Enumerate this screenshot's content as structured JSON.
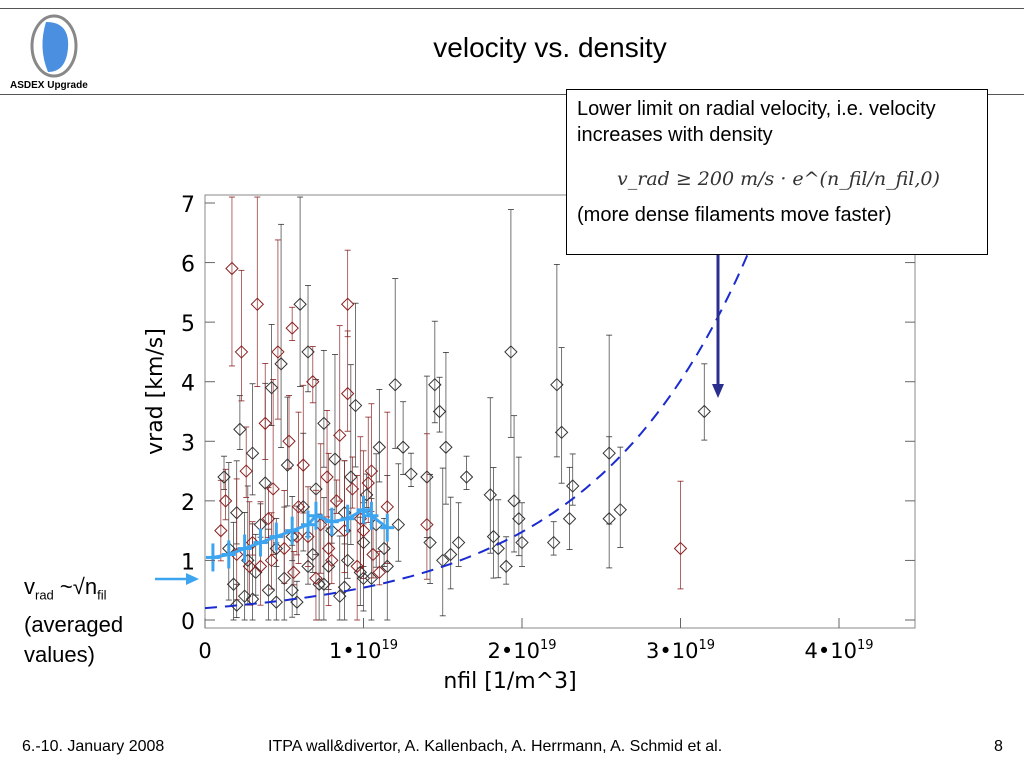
{
  "slide": {
    "title": "velocity vs. density",
    "logo_text": "ASDEX Upgrade",
    "callout": {
      "line1": "Lower limit on radial velocity, i.e. velocity increases with density",
      "formula": "v_rad ≥ 200 m/s · e^(n_fil/n_fil,0)",
      "line3": "(more dense filaments move faster)"
    },
    "annotation": {
      "v": "v",
      "rad": "rad",
      "mid": " ~√n",
      "fil": "fil",
      "line2": "(averaged",
      "line3": "values)"
    },
    "footer": {
      "date": "6.-10. January 2008",
      "credit": "ITPA wall&divertor, A. Kallenbach,  A. Herrmann, A. Schmid et al.",
      "page": "8"
    }
  },
  "colors": {
    "black_markers": "#333333",
    "red_markers": "#8b2020",
    "average_line": "#3da5f0",
    "fit_curve": "#1a2bd0",
    "callout_arrow": "#2a2f8f"
  },
  "chart_data": {
    "type": "scatter",
    "xlabel": "nfil [1/m^3]",
    "ylabel": "vrad [km/s]",
    "xlim": [
      0,
      4.5e+19
    ],
    "ylim": [
      0,
      7
    ],
    "x_ticks": [
      {
        "value": 0,
        "label": "0"
      },
      {
        "value": 1e+19,
        "label": "1•10",
        "exp": "19"
      },
      {
        "value": 2e+19,
        "label": "2•10",
        "exp": "19"
      },
      {
        "value": 3e+19,
        "label": "3•10",
        "exp": "19"
      },
      {
        "value": 4e+19,
        "label": "4•10",
        "exp": "19"
      }
    ],
    "y_ticks": [
      0,
      1,
      2,
      3,
      4,
      5,
      6,
      7
    ],
    "series": [
      {
        "key": "black",
        "points": [
          [
            1.2e+18,
            2.4
          ],
          [
            1.5e+18,
            1.2
          ],
          [
            1.8e+18,
            0.6
          ],
          [
            2e+18,
            1.8
          ],
          [
            2.2e+18,
            3.2
          ],
          [
            2.5e+18,
            0.4
          ],
          [
            2.7e+18,
            1.0
          ],
          [
            3e+18,
            2.8
          ],
          [
            3.2e+18,
            0.8
          ],
          [
            3.5e+18,
            1.6
          ],
          [
            3.8e+18,
            2.3
          ],
          [
            4e+18,
            0.5
          ],
          [
            4.2e+18,
            3.9
          ],
          [
            4.5e+18,
            1.2
          ],
          [
            4.8e+18,
            4.3
          ],
          [
            5e+18,
            0.7
          ],
          [
            5.2e+18,
            2.6
          ],
          [
            5.5e+18,
            1.4
          ],
          [
            5.8e+18,
            0.3
          ],
          [
            6e+18,
            5.3
          ],
          [
            6.2e+18,
            1.9
          ],
          [
            6.5e+18,
            4.5
          ],
          [
            6.8e+18,
            1.1
          ],
          [
            7e+18,
            2.2
          ],
          [
            7.2e+18,
            0.6
          ],
          [
            7.5e+18,
            3.3
          ],
          [
            7.8e+18,
            0.9
          ],
          [
            8e+18,
            1.5
          ],
          [
            8.2e+18,
            2.7
          ],
          [
            8.5e+18,
            0.4
          ],
          [
            8.8e+18,
            1.8
          ],
          [
            9e+18,
            1.0
          ],
          [
            9.2e+18,
            2.4
          ],
          [
            9.5e+18,
            3.6
          ],
          [
            9.8e+18,
            0.8
          ],
          [
            1e+19,
            1.3
          ],
          [
            1.02e+19,
            2.1
          ],
          [
            1.05e+19,
            0.7
          ],
          [
            1.08e+19,
            1.6
          ],
          [
            1.1e+19,
            2.9
          ],
          [
            1.13e+19,
            1.2
          ],
          [
            1.15e+19,
            0.9
          ],
          [
            1.2e+19,
            3.95
          ],
          [
            1.22e+19,
            1.6
          ],
          [
            1.25e+19,
            2.9
          ],
          [
            1.3e+19,
            2.45
          ],
          [
            1.4e+19,
            2.4
          ],
          [
            1.42e+19,
            1.3
          ],
          [
            1.45e+19,
            3.95
          ],
          [
            1.48e+19,
            3.5
          ],
          [
            1.5e+19,
            1.0
          ],
          [
            1.52e+19,
            2.9
          ],
          [
            1.55e+19,
            1.1
          ],
          [
            1.6e+19,
            1.3
          ],
          [
            1.65e+19,
            2.4
          ],
          [
            1.8e+19,
            2.1
          ],
          [
            1.82e+19,
            1.4
          ],
          [
            1.85e+19,
            1.2
          ],
          [
            1.9e+19,
            0.9
          ],
          [
            1.93e+19,
            4.5
          ],
          [
            1.95e+19,
            2.0
          ],
          [
            1.98e+19,
            1.7
          ],
          [
            2e+19,
            1.3
          ],
          [
            2.2e+19,
            1.3
          ],
          [
            2.22e+19,
            3.95
          ],
          [
            2.25e+19,
            3.15
          ],
          [
            2.3e+19,
            1.7
          ],
          [
            2.32e+19,
            2.25
          ],
          [
            2.55e+19,
            2.8
          ],
          [
            2.55e+19,
            1.7
          ],
          [
            2.62e+19,
            1.85
          ],
          [
            3.15e+19,
            3.5
          ],
          [
            2e+18,
            0.25
          ],
          [
            3e+18,
            0.35
          ],
          [
            4.5e+18,
            0.3
          ],
          [
            5.5e+18,
            0.5
          ],
          [
            6.5e+18,
            0.9
          ],
          [
            7.5e+18,
            0.6
          ],
          [
            8.8e+18,
            0.55
          ],
          [
            1e+19,
            0.7
          ]
        ]
      },
      {
        "key": "red",
        "points": [
          [
            1e+18,
            1.5
          ],
          [
            1.3e+18,
            2.0
          ],
          [
            1.7e+18,
            5.9
          ],
          [
            2e+18,
            1.1
          ],
          [
            2.3e+18,
            4.5
          ],
          [
            2.6e+18,
            2.5
          ],
          [
            3e+18,
            1.3
          ],
          [
            3.3e+18,
            5.3
          ],
          [
            3.5e+18,
            0.9
          ],
          [
            3.8e+18,
            3.3
          ],
          [
            4e+18,
            1.7
          ],
          [
            4.3e+18,
            2.2
          ],
          [
            4.6e+18,
            4.5
          ],
          [
            5e+18,
            1.2
          ],
          [
            5.3e+18,
            3.0
          ],
          [
            5.6e+18,
            0.8
          ],
          [
            5.9e+18,
            1.9
          ],
          [
            6.2e+18,
            2.6
          ],
          [
            6.5e+18,
            1.4
          ],
          [
            6.8e+18,
            4.0
          ],
          [
            7e+18,
            0.7
          ],
          [
            7.3e+18,
            1.6
          ],
          [
            7.7e+18,
            2.4
          ],
          [
            8e+18,
            1.0
          ],
          [
            8.3e+18,
            2.0
          ],
          [
            8.5e+18,
            3.1
          ],
          [
            8.8e+18,
            1.5
          ],
          [
            9e+18,
            3.8
          ],
          [
            9.3e+18,
            2.2
          ],
          [
            9.6e+18,
            0.9
          ],
          [
            9.8e+18,
            1.7
          ],
          [
            1.03e+19,
            2.3
          ],
          [
            1.06e+19,
            1.1
          ],
          [
            1.1e+19,
            0.8
          ],
          [
            1.15e+19,
            1.9
          ],
          [
            2.8e+18,
            0.9
          ],
          [
            4.2e+18,
            1.0
          ],
          [
            5.8e+18,
            1.4
          ],
          [
            7.8e+18,
            1.2
          ],
          [
            1e+19,
            1.5
          ],
          [
            1.05e+19,
            2.5
          ],
          [
            9e+18,
            5.3
          ],
          [
            5.5e+18,
            4.9
          ],
          [
            1.4e+19,
            1.6
          ],
          [
            3e+19,
            1.2
          ]
        ]
      }
    ],
    "average_points": [
      [
        5e+17,
        1.05
      ],
      [
        1.5e+18,
        1.1
      ],
      [
        2.5e+18,
        1.2
      ],
      [
        3.5e+18,
        1.3
      ],
      [
        4.5e+18,
        1.4
      ],
      [
        5.5e+18,
        1.5
      ],
      [
        6.5e+18,
        1.6
      ],
      [
        7e+18,
        1.75
      ],
      [
        8e+18,
        1.65
      ],
      [
        9e+18,
        1.7
      ],
      [
        1e+19,
        1.85
      ],
      [
        1.05e+19,
        1.75
      ],
      [
        1.15e+19,
        1.55
      ]
    ],
    "fit_curve": {
      "v0_km_s": 0.2,
      "n0": 1e+19,
      "x_range": [
        0,
        4.45e+19
      ]
    }
  }
}
